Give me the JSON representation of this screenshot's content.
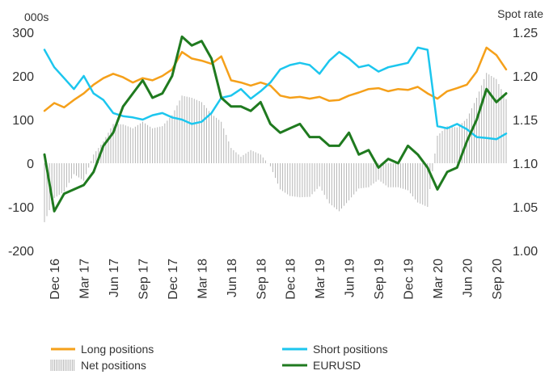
{
  "chart_data": {
    "type": "line",
    "left_axis_unit": "000s",
    "right_axis_unit": "Spot rate",
    "left_ylim": [
      -200,
      300
    ],
    "right_ylim": [
      1.0,
      1.25
    ],
    "left_ticks": [
      "300",
      "200",
      "100",
      "0",
      "-100",
      "-200"
    ],
    "right_ticks": [
      "1.25",
      "1.20",
      "1.15",
      "1.10",
      "1.05",
      "1.00"
    ],
    "x_tick_labels": [
      "Dec 16",
      "Mar 17",
      "Jun 17",
      "Sep 17",
      "Dec 17",
      "Mar 18",
      "Jun 18",
      "Sep 18",
      "Dec 18",
      "Mar 19",
      "Jun 19",
      "Sep 19",
      "Dec 19",
      "Mar 20",
      "Jun 20",
      "Sep 20"
    ],
    "x_range": [
      "2016-11",
      "2020-10"
    ],
    "grid": false,
    "legend_position": "bottom",
    "colors": {
      "long": "#f5a01a",
      "short": "#1cc6ee",
      "net": "#b5b5b5",
      "eurusd": "#1f7a1f"
    },
    "series": [
      {
        "name": "Long positions",
        "axis": "left",
        "x": [
          "2016-11",
          "2016-12",
          "2017-01",
          "2017-02",
          "2017-03",
          "2017-04",
          "2017-05",
          "2017-06",
          "2017-07",
          "2017-08",
          "2017-09",
          "2017-10",
          "2017-11",
          "2017-12",
          "2018-01",
          "2018-02",
          "2018-03",
          "2018-04",
          "2018-05",
          "2018-06",
          "2018-07",
          "2018-08",
          "2018-09",
          "2018-10",
          "2018-11",
          "2018-12",
          "2019-01",
          "2019-02",
          "2019-03",
          "2019-04",
          "2019-05",
          "2019-06",
          "2019-07",
          "2019-08",
          "2019-09",
          "2019-10",
          "2019-11",
          "2019-12",
          "2020-01",
          "2020-02",
          "2020-03",
          "2020-04",
          "2020-05",
          "2020-06",
          "2020-07",
          "2020-08",
          "2020-09",
          "2020-10"
        ],
        "values": [
          120,
          138,
          128,
          145,
          160,
          180,
          195,
          205,
          197,
          185,
          195,
          190,
          200,
          215,
          255,
          240,
          235,
          228,
          245,
          190,
          185,
          178,
          185,
          178,
          155,
          150,
          152,
          148,
          152,
          143,
          145,
          155,
          162,
          170,
          172,
          165,
          170,
          168,
          175,
          160,
          148,
          165,
          172,
          180,
          210,
          265,
          248,
          215
        ]
      },
      {
        "name": "Short positions",
        "axis": "left",
        "x": [
          "2016-11",
          "2016-12",
          "2017-01",
          "2017-02",
          "2017-03",
          "2017-04",
          "2017-05",
          "2017-06",
          "2017-07",
          "2017-08",
          "2017-09",
          "2017-10",
          "2017-11",
          "2017-12",
          "2018-01",
          "2018-02",
          "2018-03",
          "2018-04",
          "2018-05",
          "2018-06",
          "2018-07",
          "2018-08",
          "2018-09",
          "2018-10",
          "2018-11",
          "2018-12",
          "2019-01",
          "2019-02",
          "2019-03",
          "2019-04",
          "2019-05",
          "2019-06",
          "2019-07",
          "2019-08",
          "2019-09",
          "2019-10",
          "2019-11",
          "2019-12",
          "2020-01",
          "2020-02",
          "2020-03",
          "2020-04",
          "2020-05",
          "2020-06",
          "2020-07",
          "2020-08",
          "2020-09",
          "2020-10"
        ],
        "values": [
          260,
          220,
          195,
          170,
          200,
          160,
          145,
          115,
          108,
          105,
          100,
          110,
          115,
          105,
          100,
          90,
          95,
          115,
          150,
          155,
          170,
          148,
          165,
          185,
          215,
          225,
          230,
          225,
          205,
          235,
          255,
          240,
          220,
          225,
          210,
          220,
          225,
          230,
          265,
          260,
          85,
          80,
          90,
          78,
          60,
          58,
          55,
          68
        ]
      },
      {
        "name": "Net positions",
        "axis": "left",
        "x": [
          "2016-11",
          "2016-12",
          "2017-01",
          "2017-02",
          "2017-03",
          "2017-04",
          "2017-05",
          "2017-06",
          "2017-07",
          "2017-08",
          "2017-09",
          "2017-10",
          "2017-11",
          "2017-12",
          "2018-01",
          "2018-02",
          "2018-03",
          "2018-04",
          "2018-05",
          "2018-06",
          "2018-07",
          "2018-08",
          "2018-09",
          "2018-10",
          "2018-11",
          "2018-12",
          "2019-01",
          "2019-02",
          "2019-03",
          "2019-04",
          "2019-05",
          "2019-06",
          "2019-07",
          "2019-08",
          "2019-09",
          "2019-10",
          "2019-11",
          "2019-12",
          "2020-01",
          "2020-02",
          "2020-03",
          "2020-04",
          "2020-05",
          "2020-06",
          "2020-07",
          "2020-08",
          "2020-09",
          "2020-10"
        ],
        "values": [
          -135,
          -80,
          -65,
          -25,
          -40,
          20,
          50,
          90,
          89,
          80,
          95,
          80,
          85,
          110,
          155,
          150,
          140,
          113,
          95,
          35,
          15,
          30,
          20,
          -7,
          -60,
          -75,
          -78,
          -77,
          -53,
          -92,
          -110,
          -85,
          -58,
          -55,
          -38,
          -55,
          -55,
          -62,
          -90,
          -100,
          63,
          85,
          82,
          102,
          150,
          207,
          193,
          147
        ]
      },
      {
        "name": "EURUSD",
        "axis": "right",
        "x": [
          "2016-11",
          "2016-12",
          "2017-01",
          "2017-02",
          "2017-03",
          "2017-04",
          "2017-05",
          "2017-06",
          "2017-07",
          "2017-08",
          "2017-09",
          "2017-10",
          "2017-11",
          "2017-12",
          "2018-01",
          "2018-02",
          "2018-03",
          "2018-04",
          "2018-05",
          "2018-06",
          "2018-07",
          "2018-08",
          "2018-09",
          "2018-10",
          "2018-11",
          "2018-12",
          "2019-01",
          "2019-02",
          "2019-03",
          "2019-04",
          "2019-05",
          "2019-06",
          "2019-07",
          "2019-08",
          "2019-09",
          "2019-10",
          "2019-11",
          "2019-12",
          "2020-01",
          "2020-02",
          "2020-03",
          "2020-04",
          "2020-05",
          "2020-06",
          "2020-07",
          "2020-08",
          "2020-09",
          "2020-10"
        ],
        "values": [
          1.11,
          1.045,
          1.065,
          1.07,
          1.075,
          1.09,
          1.12,
          1.135,
          1.165,
          1.18,
          1.195,
          1.175,
          1.18,
          1.2,
          1.245,
          1.235,
          1.24,
          1.22,
          1.175,
          1.165,
          1.165,
          1.16,
          1.17,
          1.145,
          1.135,
          1.14,
          1.145,
          1.13,
          1.13,
          1.12,
          1.12,
          1.135,
          1.11,
          1.115,
          1.095,
          1.105,
          1.1,
          1.12,
          1.11,
          1.095,
          1.07,
          1.09,
          1.095,
          1.125,
          1.15,
          1.185,
          1.17,
          1.18
        ]
      }
    ]
  },
  "legend": {
    "long": "Long positions",
    "short": "Short positions",
    "net": "Net positions",
    "eurusd": "EURUSD"
  }
}
